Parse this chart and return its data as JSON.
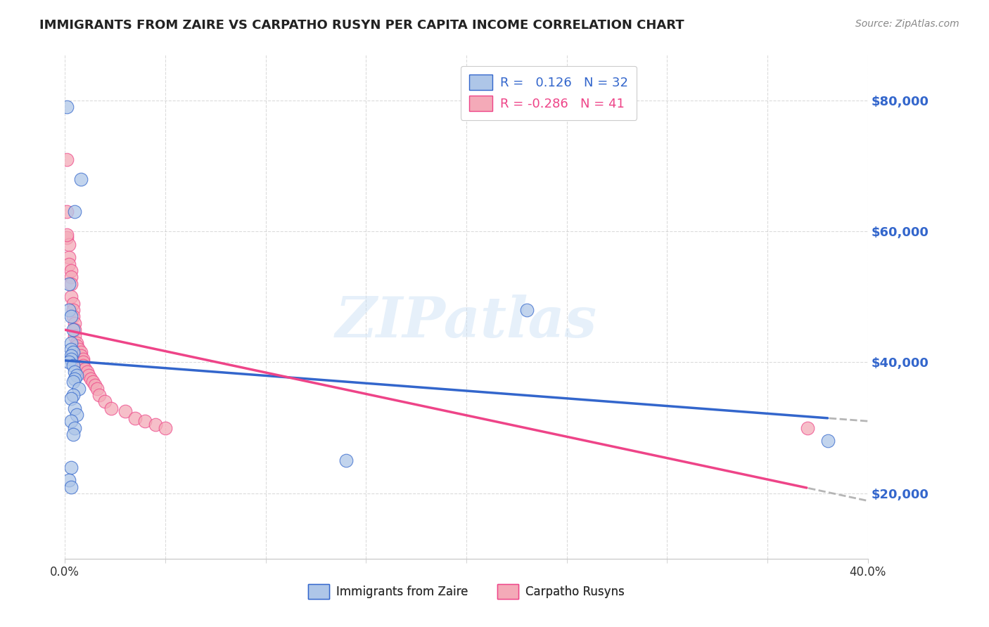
{
  "title": "IMMIGRANTS FROM ZAIRE VS CARPATHO RUSYN PER CAPITA INCOME CORRELATION CHART",
  "source": "Source: ZipAtlas.com",
  "ylabel": "Per Capita Income",
  "ytick_labels": [
    "$20,000",
    "$40,000",
    "$60,000",
    "$80,000"
  ],
  "ytick_values": [
    20000,
    40000,
    60000,
    80000
  ],
  "xlim": [
    0.0,
    0.4
  ],
  "ylim": [
    10000,
    87000
  ],
  "blue_color": "#aec6e8",
  "pink_color": "#f4aab8",
  "blue_line_color": "#3366cc",
  "pink_line_color": "#ee4488",
  "blue_scatter_x": [
    0.001,
    0.008,
    0.005,
    0.002,
    0.002,
    0.003,
    0.004,
    0.003,
    0.003,
    0.004,
    0.003,
    0.003,
    0.002,
    0.004,
    0.005,
    0.006,
    0.005,
    0.004,
    0.007,
    0.004,
    0.003,
    0.005,
    0.006,
    0.003,
    0.005,
    0.004,
    0.23,
    0.14,
    0.38,
    0.003,
    0.002,
    0.003
  ],
  "blue_scatter_y": [
    79000,
    68000,
    63000,
    48000,
    52000,
    47000,
    45000,
    43000,
    42000,
    41500,
    41000,
    40500,
    40000,
    39500,
    38500,
    38000,
    37500,
    37000,
    36000,
    35000,
    34500,
    33000,
    32000,
    31000,
    30000,
    29000,
    48000,
    25000,
    28000,
    24000,
    22000,
    21000
  ],
  "pink_scatter_x": [
    0.001,
    0.001,
    0.001,
    0.002,
    0.002,
    0.002,
    0.003,
    0.003,
    0.003,
    0.003,
    0.004,
    0.004,
    0.004,
    0.005,
    0.005,
    0.005,
    0.006,
    0.006,
    0.007,
    0.008,
    0.008,
    0.009,
    0.009,
    0.009,
    0.01,
    0.011,
    0.012,
    0.013,
    0.014,
    0.015,
    0.016,
    0.017,
    0.02,
    0.023,
    0.03,
    0.035,
    0.04,
    0.045,
    0.05,
    0.37,
    0.001
  ],
  "pink_scatter_y": [
    71000,
    63000,
    59000,
    58000,
    56000,
    55000,
    54000,
    53000,
    52000,
    50000,
    49000,
    48000,
    47000,
    46000,
    45000,
    44000,
    43000,
    42500,
    42000,
    41500,
    41000,
    40500,
    40000,
    39500,
    39000,
    38500,
    38000,
    37500,
    37000,
    36500,
    36000,
    35000,
    34000,
    33000,
    32500,
    31500,
    31000,
    30500,
    30000,
    30000,
    59500
  ],
  "watermark": "ZIPatlas",
  "background_color": "#ffffff",
  "grid_color": "#cccccc",
  "xtick_positions": [
    0.0,
    0.4
  ],
  "xtick_labels": [
    "0.0%",
    "40.0%"
  ],
  "xtick_minor_count": 9
}
